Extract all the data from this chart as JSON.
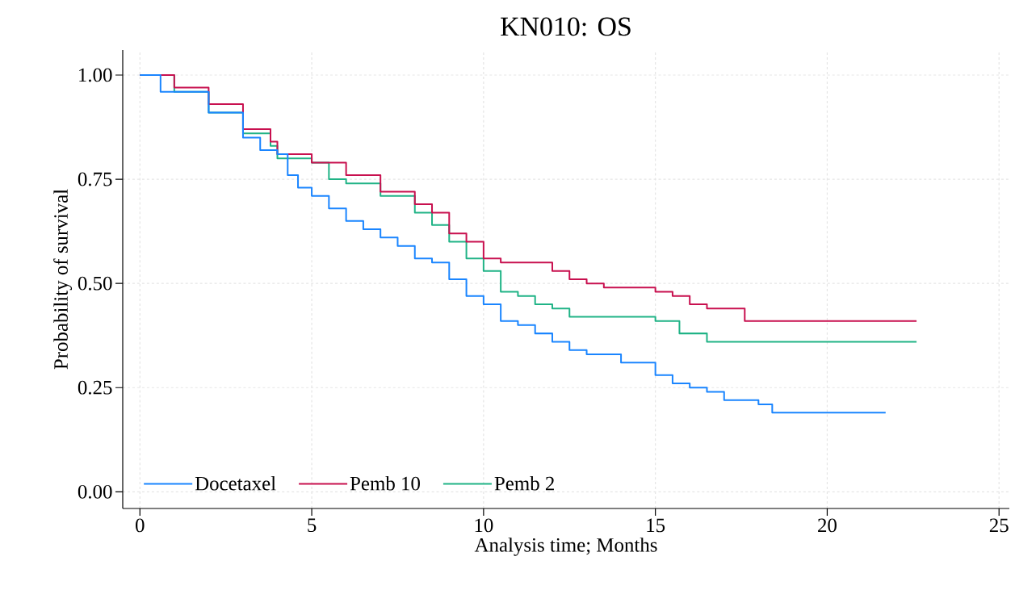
{
  "chart_data": {
    "type": "step",
    "title": "KN010: OS",
    "xlabel": "Analysis time; Months",
    "ylabel": "Probability of survival",
    "xlim": [
      -0.5,
      25.3
    ],
    "ylim": [
      -0.04,
      1.06
    ],
    "xticks": [
      0,
      5,
      10,
      15,
      20,
      25
    ],
    "yticks": [
      {
        "value": 0,
        "label": "0.00"
      },
      {
        "value": 0.25,
        "label": "0.25"
      },
      {
        "value": 0.5,
        "label": "0.50"
      },
      {
        "value": 0.75,
        "label": "0.75"
      },
      {
        "value": 1,
        "label": "1.00"
      }
    ],
    "grid": true,
    "legend": "bottom left",
    "series": [
      {
        "name": "Docetaxel",
        "color": "#1a85ff",
        "x": [
          0,
          0.6,
          2,
          3,
          3.5,
          4,
          4.3,
          4.6,
          5,
          5.5,
          6,
          6.5,
          7,
          7.5,
          8,
          8.5,
          9,
          9.5,
          10,
          10.5,
          11,
          11.5,
          12,
          12.5,
          13,
          13.5,
          14,
          14.5,
          15,
          15.5,
          16,
          16.5,
          17,
          18,
          18.4,
          20,
          21.7
        ],
        "values": [
          1.0,
          0.96,
          0.91,
          0.85,
          0.82,
          0.81,
          0.76,
          0.73,
          0.71,
          0.68,
          0.65,
          0.63,
          0.61,
          0.59,
          0.56,
          0.55,
          0.51,
          0.47,
          0.45,
          0.41,
          0.4,
          0.38,
          0.36,
          0.34,
          0.33,
          0.33,
          0.31,
          0.31,
          0.28,
          0.26,
          0.25,
          0.24,
          0.22,
          0.21,
          0.19,
          0.19,
          0.19
        ]
      },
      {
        "name": "Pemb 10",
        "color": "#c8104f",
        "x": [
          0,
          1,
          2,
          3,
          3.8,
          4,
          5,
          6,
          7,
          8,
          8.5,
          9,
          9.5,
          10,
          10.5,
          11,
          12,
          12.5,
          13,
          13.5,
          15,
          15.5,
          16,
          16.5,
          17.6,
          22.6
        ],
        "values": [
          1.0,
          0.97,
          0.93,
          0.87,
          0.84,
          0.81,
          0.79,
          0.76,
          0.72,
          0.69,
          0.67,
          0.62,
          0.6,
          0.56,
          0.55,
          0.55,
          0.53,
          0.51,
          0.5,
          0.49,
          0.48,
          0.47,
          0.45,
          0.44,
          0.41,
          0.41
        ]
      },
      {
        "name": "Pemb 2",
        "color": "#20b386",
        "x": [
          0,
          1,
          2,
          3,
          3.8,
          4,
          5,
          5.5,
          6,
          7,
          8,
          8.5,
          9,
          9.5,
          10,
          10.5,
          11,
          11.5,
          12,
          12.5,
          13,
          14.5,
          15,
          15.7,
          16.5,
          22.6
        ],
        "values": [
          1.0,
          0.96,
          0.91,
          0.86,
          0.83,
          0.8,
          0.79,
          0.75,
          0.74,
          0.71,
          0.67,
          0.64,
          0.6,
          0.56,
          0.53,
          0.48,
          0.47,
          0.45,
          0.44,
          0.42,
          0.42,
          0.42,
          0.41,
          0.38,
          0.36,
          0.36
        ]
      }
    ]
  }
}
